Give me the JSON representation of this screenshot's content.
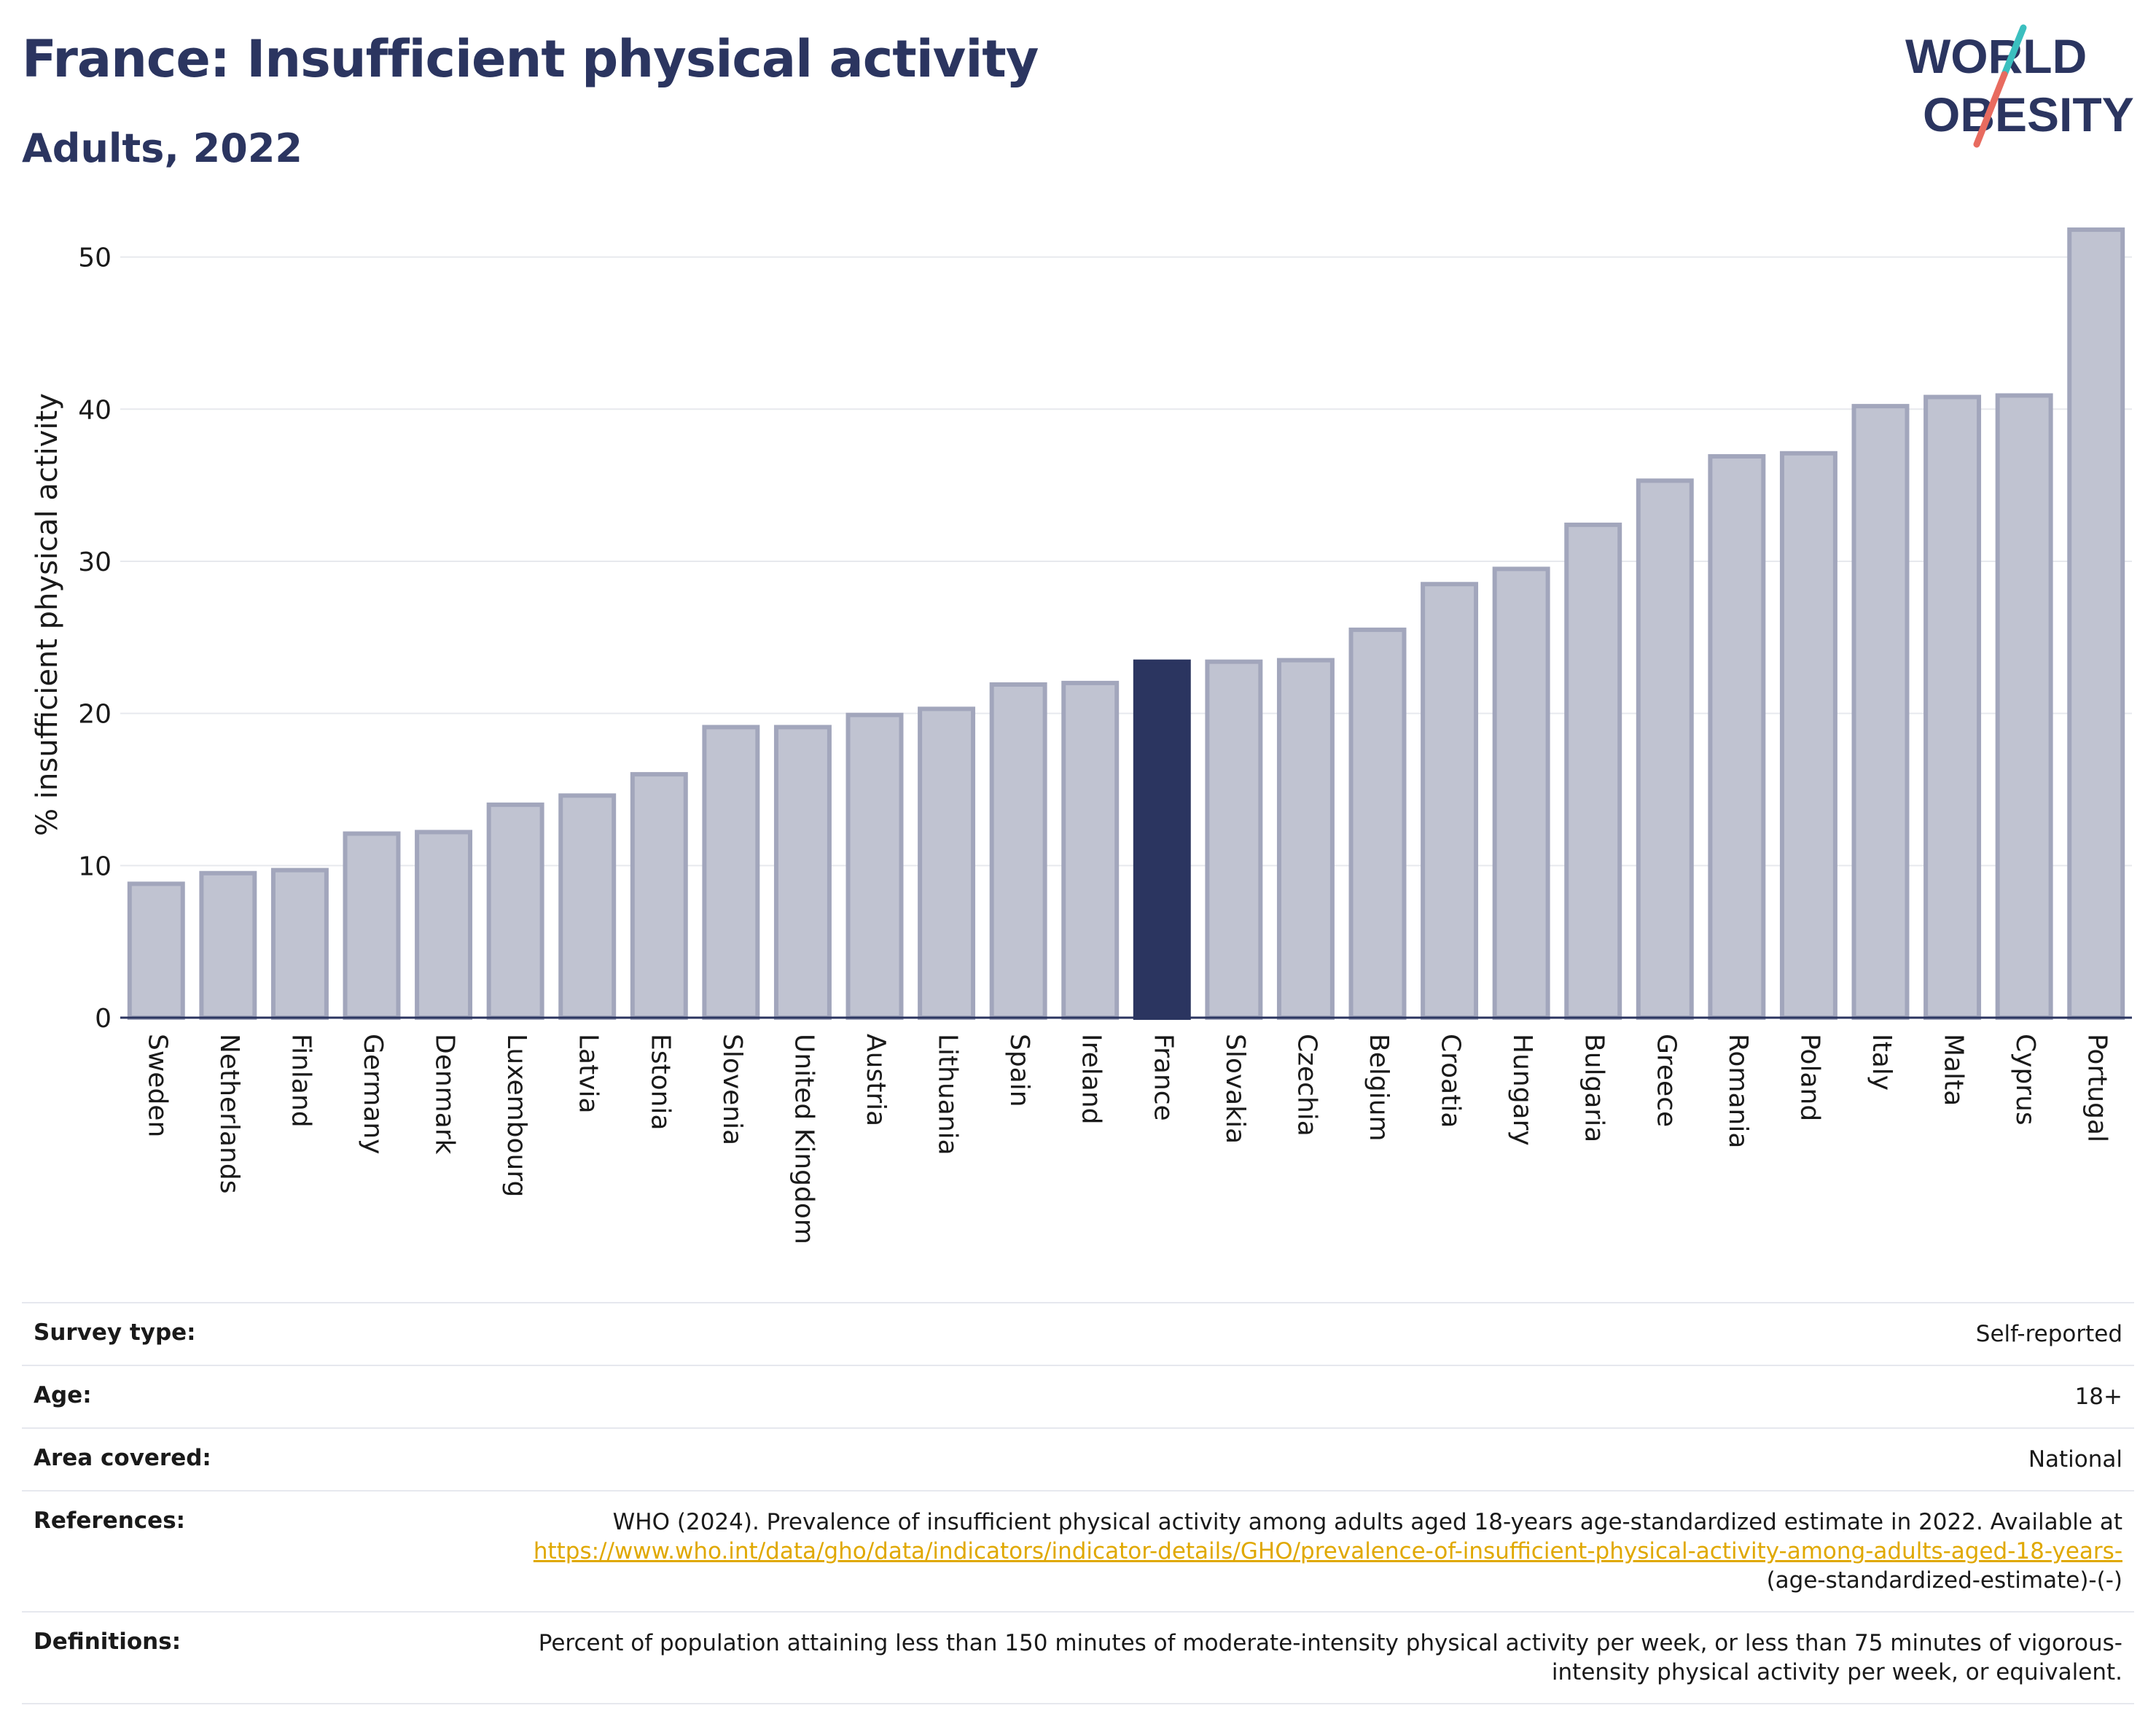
{
  "header": {
    "title": "France: Insufficient physical activity",
    "subtitle": "Adults, 2022"
  },
  "logo": {
    "line1": "WORLD",
    "line2": "OBESITY"
  },
  "colors": {
    "highlight": "#2b3560",
    "bar": "#c0c3d1",
    "bar_stroke": "#a2a6bc",
    "text_dark": "#2b3560",
    "link": "#e0a800"
  },
  "chart_data": {
    "type": "bar",
    "ylabel": "% insufficient physical activity",
    "xlabel": "",
    "ylim": [
      0,
      53
    ],
    "yticks": [
      0,
      10,
      20,
      30,
      40,
      50
    ],
    "highlight": "France",
    "categories": [
      "Sweden",
      "Netherlands",
      "Finland",
      "Germany",
      "Denmark",
      "Luxembourg",
      "Latvia",
      "Estonia",
      "Slovenia",
      "United Kingdom",
      "Austria",
      "Lithuania",
      "Spain",
      "Ireland",
      "France",
      "Slovakia",
      "Czechia",
      "Belgium",
      "Croatia",
      "Hungary",
      "Bulgaria",
      "Greece",
      "Romania",
      "Poland",
      "Italy",
      "Malta",
      "Cyprus",
      "Portugal"
    ],
    "values": [
      8.8,
      9.5,
      9.7,
      12.1,
      12.2,
      14.0,
      14.6,
      16.0,
      19.1,
      19.1,
      19.9,
      20.3,
      21.9,
      22.0,
      23.4,
      23.4,
      23.5,
      25.5,
      28.5,
      29.5,
      32.4,
      35.3,
      36.9,
      37.1,
      40.2,
      40.8,
      40.9,
      51.8
    ],
    "grid": true
  },
  "meta": {
    "survey_type_label": "Survey type:",
    "survey_type_value": "Self-reported",
    "age_label": "Age:",
    "age_value": "18+",
    "area_label": "Area covered:",
    "area_value": "National",
    "references_label": "References:",
    "references_text": "WHO (2024). Prevalence of insufficient physical activity among adults aged 18-years age-standardized estimate in 2022. Available at",
    "references_link": "https://www.who.int/data/gho/data/indicators/indicator-details/GHO/prevalence-of-insufficient-physical-activity-among-adults-aged-18-years-",
    "references_suffix": "(age-standardized-estimate)-(-)",
    "definitions_label": "Definitions:",
    "definitions_value": "Percent of population attaining less than 150 minutes of moderate-intensity physical activity per week, or less than 75 minutes of vigorous-intensity physical activity per week, or equivalent."
  }
}
